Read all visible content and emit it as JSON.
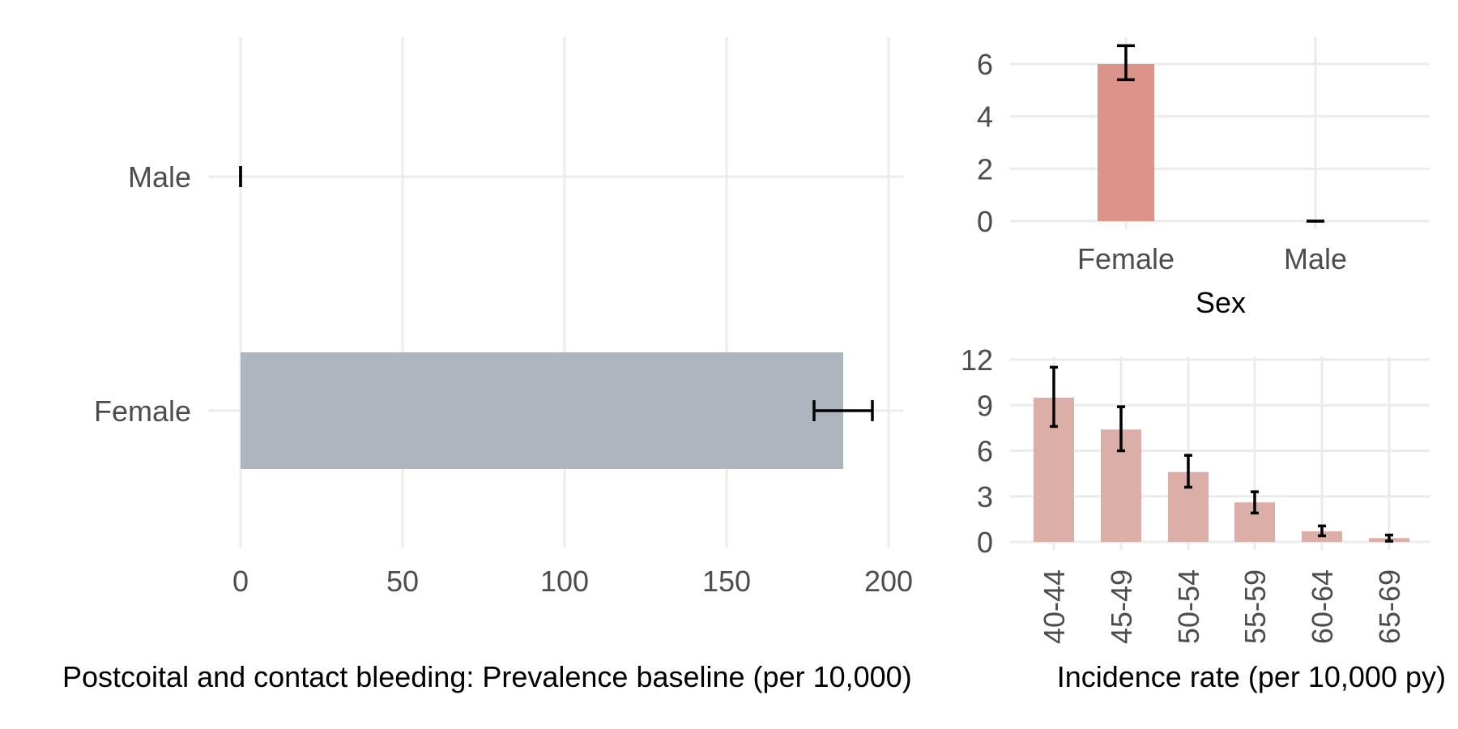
{
  "colors": {
    "left_bar": "#adb5be",
    "sex_bar": "#dc938a",
    "age_bar": "#dcaea8",
    "grid": "#ebebeb",
    "tick_text": "#4d4d4d",
    "title_text": "#000000"
  },
  "chart_data": [
    {
      "id": "prevalence",
      "type": "bar",
      "orientation": "horizontal",
      "categories": [
        "Male",
        "Female"
      ],
      "values": [
        0,
        186
      ],
      "error_low": [
        0,
        177
      ],
      "error_high": [
        0,
        195
      ],
      "xlim": [
        0,
        200
      ],
      "xticks": [
        0,
        50,
        100,
        150,
        200
      ],
      "xtick_labels": [
        "0",
        "50",
        "100",
        "150",
        "200"
      ],
      "xlabel": "Postcoital and contact bleeding: Prevalence baseline (per 10,000)",
      "grid": true
    },
    {
      "id": "incidence_sex",
      "type": "bar",
      "categories": [
        "Female",
        "Male"
      ],
      "values": [
        6.0,
        0
      ],
      "error_low": [
        5.4,
        0
      ],
      "error_high": [
        6.7,
        0
      ],
      "ylim": [
        0,
        7
      ],
      "yticks": [
        0,
        2,
        4,
        6
      ],
      "ytick_labels": [
        "0",
        "2",
        "4",
        "6"
      ],
      "xlabel": "Sex",
      "grid": true
    },
    {
      "id": "incidence_age",
      "type": "bar",
      "categories": [
        "40-44",
        "45-49",
        "50-54",
        "55-59",
        "60-64",
        "65-69"
      ],
      "values": [
        9.5,
        7.4,
        4.6,
        2.6,
        0.7,
        0.25
      ],
      "error_low": [
        7.6,
        6.0,
        3.6,
        1.9,
        0.4,
        0.05
      ],
      "error_high": [
        11.5,
        8.9,
        5.7,
        3.3,
        1.05,
        0.45
      ],
      "ylim": [
        0,
        12
      ],
      "yticks": [
        0,
        3,
        6,
        9,
        12
      ],
      "ytick_labels": [
        "0",
        "3",
        "6",
        "9",
        "12"
      ],
      "xlabel": "Incidence rate (per 10,000 py)",
      "grid": true
    }
  ]
}
